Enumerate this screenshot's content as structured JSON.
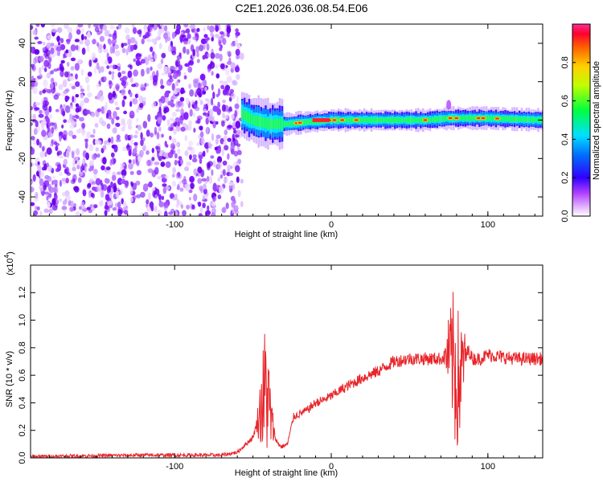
{
  "title": "C2E1.2026.036.08.54.E06",
  "colors": {
    "signal": "#e8252a",
    "axis": "#000000"
  },
  "chart_data": [
    {
      "type": "heatmap",
      "xlabel": "Height of straight line (km)",
      "ylabel": "Frequency (Hz)",
      "xlim": [
        -192,
        135
      ],
      "ylim": [
        -50,
        50
      ],
      "xticks": [
        {
          "v": -100,
          "label": "-100"
        },
        {
          "v": 0,
          "label": "0"
        },
        {
          "v": 100,
          "label": "100"
        }
      ],
      "yticks": [
        {
          "v": -40,
          "label": "-40"
        },
        {
          "v": -20,
          "label": "-20"
        },
        {
          "v": 0,
          "label": "0"
        },
        {
          "v": 20,
          "label": "20"
        },
        {
          "v": 40,
          "label": "40"
        }
      ],
      "colorbar": {
        "label": "Normalized spectral amplitude",
        "range": [
          0,
          1
        ],
        "ticks": [
          {
            "v": 0.0,
            "label": "0.0"
          },
          {
            "v": 0.2,
            "label": "0.2"
          },
          {
            "v": 0.4,
            "label": "0.4"
          },
          {
            "v": 0.6,
            "label": "0.6"
          },
          {
            "v": 0.8,
            "label": "0.8"
          }
        ]
      },
      "noise_region_x": [
        -192,
        -57
      ],
      "ridge": [
        {
          "x": -57,
          "f": 3
        },
        {
          "x": -50,
          "f": 0
        },
        {
          "x": -40,
          "f": -2
        },
        {
          "x": -28,
          "f": -2
        },
        {
          "x": -15,
          "f": -1
        },
        {
          "x": 0,
          "f": 0
        },
        {
          "x": 20,
          "f": 0
        },
        {
          "x": 60,
          "f": 0
        },
        {
          "x": 75,
          "f": 1
        },
        {
          "x": 90,
          "f": 1
        },
        {
          "x": 100,
          "f": 1
        },
        {
          "x": 135,
          "f": 0
        }
      ]
    },
    {
      "type": "line",
      "xlabel": "Height of straight line (km)",
      "ylabel": "SNR (10 * v/v)",
      "yscale_label": "(x10",
      "yscale_exp": "4",
      "yscale_close": ")",
      "xlim": [
        -192,
        135
      ],
      "ylim": [
        0,
        1.4
      ],
      "xticks": [
        {
          "v": -100,
          "label": "-100"
        },
        {
          "v": 0,
          "label": "0"
        },
        {
          "v": 100,
          "label": "100"
        }
      ],
      "yticks": [
        {
          "v": 0.0,
          "label": "0.0"
        },
        {
          "v": 0.2,
          "label": "0.2"
        },
        {
          "v": 0.4,
          "label": "0.4"
        },
        {
          "v": 0.6,
          "label": "0.6"
        },
        {
          "v": 0.8,
          "label": "0.8"
        },
        {
          "v": 1.0,
          "label": "1.0"
        },
        {
          "v": 1.2,
          "label": "1.2"
        }
      ],
      "series": [
        {
          "x": [
            -192,
            -120,
            -70,
            -60,
            -50,
            -45,
            -42,
            -40,
            -38,
            -35,
            -32,
            -28,
            -24,
            -20,
            -15,
            -10,
            -5,
            0,
            10,
            20,
            30,
            40,
            50,
            60,
            70,
            75,
            78,
            80,
            82,
            84,
            86,
            88,
            90,
            95,
            100,
            110,
            120,
            135
          ],
          "values": [
            0.01,
            0.02,
            0.02,
            0.04,
            0.15,
            0.35,
            0.5,
            0.4,
            0.25,
            0.12,
            0.08,
            0.1,
            0.3,
            0.32,
            0.35,
            0.4,
            0.42,
            0.45,
            0.52,
            0.58,
            0.63,
            0.7,
            0.72,
            0.72,
            0.72,
            0.75,
            0.7,
            0.6,
            0.55,
            0.7,
            0.75,
            0.78,
            0.72,
            0.72,
            0.75,
            0.73,
            0.72,
            0.72
          ]
        }
      ],
      "bursts": [
        {
          "from": -48,
          "to": -36,
          "amp": 0.5
        },
        {
          "from": 72,
          "to": 87,
          "amp": 0.6
        }
      ]
    }
  ]
}
